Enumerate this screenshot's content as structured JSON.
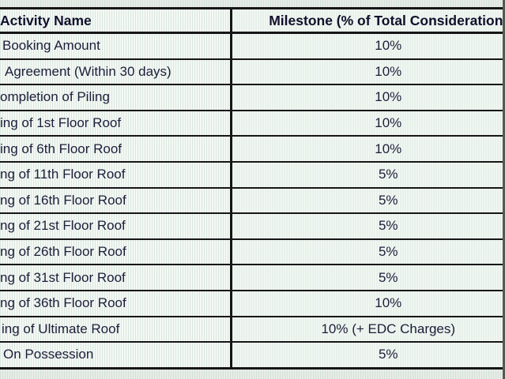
{
  "table": {
    "headers": {
      "activity": "Activity Name",
      "milestone": "Milestone (% of Total Consideration)"
    },
    "rows": [
      {
        "activity": "Booking Amount",
        "milestone": "10%"
      },
      {
        "activity": "Agreement (Within 30 days)",
        "milestone": "10%"
      },
      {
        "activity": "ompletion of Piling",
        "milestone": "10%"
      },
      {
        "activity": "ing of 1st Floor Roof",
        "milestone": "10%"
      },
      {
        "activity": "ing of 6th Floor Roof",
        "milestone": "10%"
      },
      {
        "activity": "ng of 11th Floor Roof",
        "milestone": "5%"
      },
      {
        "activity": "ng of 16th Floor Roof",
        "milestone": "5%"
      },
      {
        "activity": "ng of 21st Floor Roof",
        "milestone": "5%"
      },
      {
        "activity": "ng of 26th Floor Roof",
        "milestone": "5%"
      },
      {
        "activity": "ng of 31st Floor Roof",
        "milestone": "5%"
      },
      {
        "activity": "ng of 36th Floor Roof",
        "milestone": "10%"
      },
      {
        "activity": "ing of Ultimate Roof",
        "milestone": "10% (+ EDC Charges)"
      },
      {
        "activity": "On Possession",
        "milestone": "5%"
      }
    ],
    "colors": {
      "border": "#161616",
      "text": "#1d1d3a",
      "cell_background": "#f4f9f4",
      "page_background": "#e7ede7"
    }
  }
}
